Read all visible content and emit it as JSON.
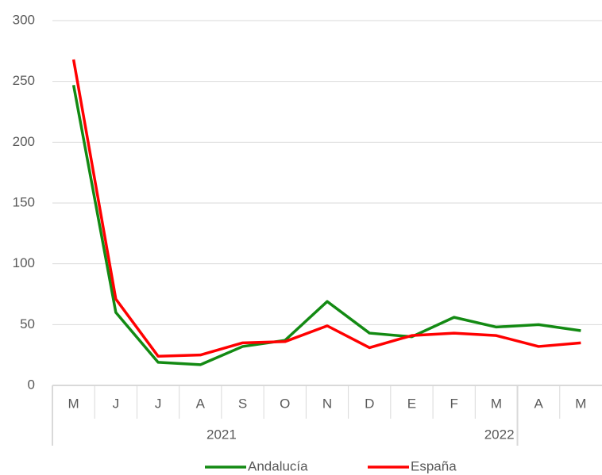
{
  "chart_data": {
    "type": "line",
    "categories": [
      "M",
      "J",
      "J",
      "A",
      "S",
      "O",
      "N",
      "D",
      "E",
      "F",
      "M",
      "A",
      "M"
    ],
    "groups": [
      "2021",
      "2022"
    ],
    "series": [
      {
        "name": "Andalucía",
        "color": "#138a13",
        "values": [
          247,
          60,
          19,
          17,
          32,
          37,
          69,
          43,
          40,
          56,
          48,
          50,
          45
        ]
      },
      {
        "name": "España",
        "color": "#ff0000",
        "values": [
          268,
          71,
          24,
          25,
          35,
          36,
          49,
          31,
          41,
          43,
          41,
          32,
          35
        ]
      }
    ],
    "ylim": [
      0,
      300
    ],
    "yticks": [
      0,
      50,
      100,
      150,
      200,
      250,
      300
    ],
    "grid": true,
    "legend": "bottom"
  }
}
